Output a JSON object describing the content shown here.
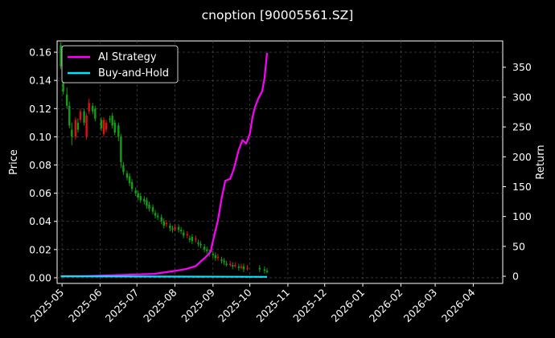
{
  "chart_data": {
    "type": "line",
    "title": "cnoption [90005561.SZ]",
    "ylabel": "Price",
    "y2label": "Return",
    "x_ticks": [
      "2025-05",
      "2025-06",
      "2025-07",
      "2025-08",
      "2025-09",
      "2025-10",
      "2025-11",
      "2025-12",
      "2026-01",
      "2026-02",
      "2026-03",
      "2026-04"
    ],
    "xlim": [
      "2025-04-27",
      "2026-04-25"
    ],
    "ylim": [
      -0.004,
      0.168
    ],
    "y_ticks": [
      "0.00",
      "0.02",
      "0.04",
      "0.06",
      "0.08",
      "0.10",
      "0.12",
      "0.14",
      "0.16"
    ],
    "y2lim": [
      -12,
      394
    ],
    "y2_ticks": [
      "0",
      "50",
      "100",
      "150",
      "200",
      "250",
      "300",
      "350"
    ],
    "grid": true,
    "legend_position": "top-left",
    "colors": {
      "up": "#e01010",
      "down": "#11a011",
      "strategy": "#ff00ff",
      "buyhold": "#00e5ff",
      "grid": "#555555"
    },
    "candles": {
      "dates": [
        "2025-04-30",
        "2025-05-02",
        "2025-05-05",
        "2025-05-07",
        "2025-05-09",
        "2025-05-12",
        "2025-05-14",
        "2025-05-16",
        "2025-05-19",
        "2025-05-21",
        "2025-05-23",
        "2025-05-26",
        "2025-05-28",
        "2025-06-02",
        "2025-06-04",
        "2025-06-06",
        "2025-06-09",
        "2025-06-11",
        "2025-06-13",
        "2025-06-16",
        "2025-06-18",
        "2025-06-20",
        "2025-06-23",
        "2025-06-25",
        "2025-06-27",
        "2025-06-30",
        "2025-07-02",
        "2025-07-04",
        "2025-07-07",
        "2025-07-09",
        "2025-07-11",
        "2025-07-14",
        "2025-07-16",
        "2025-07-18",
        "2025-07-21",
        "2025-07-23",
        "2025-07-25",
        "2025-07-28",
        "2025-07-30",
        "2025-08-01",
        "2025-08-04",
        "2025-08-06",
        "2025-08-08",
        "2025-08-11",
        "2025-08-13",
        "2025-08-15",
        "2025-08-18",
        "2025-08-20",
        "2025-08-22",
        "2025-08-25",
        "2025-08-27",
        "2025-08-29",
        "2025-09-01",
        "2025-09-03",
        "2025-09-05",
        "2025-09-08",
        "2025-09-10",
        "2025-09-12",
        "2025-09-15",
        "2025-09-17",
        "2025-09-19",
        "2025-09-22",
        "2025-09-24",
        "2025-09-26",
        "2025-09-29",
        "2025-10-09",
        "2025-10-13",
        "2025-10-15"
      ],
      "open": [
        0.165,
        0.15,
        0.13,
        0.122,
        0.105,
        0.1,
        0.11,
        0.112,
        0.118,
        0.1,
        0.118,
        0.122,
        0.12,
        0.112,
        0.102,
        0.105,
        0.113,
        0.115,
        0.11,
        0.108,
        0.1,
        0.08,
        0.074,
        0.072,
        0.068,
        0.062,
        0.06,
        0.058,
        0.056,
        0.055,
        0.052,
        0.05,
        0.046,
        0.044,
        0.043,
        0.04,
        0.038,
        0.037,
        0.035,
        0.034,
        0.036,
        0.034,
        0.032,
        0.03,
        0.028,
        0.029,
        0.027,
        0.025,
        0.024,
        0.022,
        0.02,
        0.018,
        0.017,
        0.016,
        0.014,
        0.013,
        0.012,
        0.01,
        0.009,
        0.009,
        0.008,
        0.008,
        0.007,
        0.008,
        0.006,
        0.007,
        0.006,
        0.005
      ],
      "close": [
        0.15,
        0.132,
        0.122,
        0.108,
        0.1,
        0.112,
        0.105,
        0.118,
        0.11,
        0.115,
        0.124,
        0.118,
        0.113,
        0.106,
        0.112,
        0.11,
        0.112,
        0.108,
        0.103,
        0.1,
        0.082,
        0.075,
        0.071,
        0.067,
        0.063,
        0.06,
        0.057,
        0.055,
        0.054,
        0.051,
        0.049,
        0.047,
        0.044,
        0.043,
        0.04,
        0.037,
        0.039,
        0.035,
        0.034,
        0.036,
        0.034,
        0.033,
        0.03,
        0.031,
        0.027,
        0.026,
        0.028,
        0.024,
        0.023,
        0.02,
        0.019,
        0.017,
        0.016,
        0.014,
        0.015,
        0.012,
        0.011,
        0.009,
        0.01,
        0.008,
        0.009,
        0.007,
        0.008,
        0.006,
        0.007,
        0.006,
        0.005,
        0.004
      ],
      "high": [
        0.167,
        0.152,
        0.135,
        0.125,
        0.11,
        0.114,
        0.113,
        0.12,
        0.12,
        0.117,
        0.127,
        0.124,
        0.122,
        0.114,
        0.114,
        0.112,
        0.115,
        0.117,
        0.112,
        0.11,
        0.102,
        0.082,
        0.076,
        0.074,
        0.07,
        0.064,
        0.062,
        0.06,
        0.058,
        0.057,
        0.054,
        0.052,
        0.048,
        0.046,
        0.045,
        0.042,
        0.041,
        0.039,
        0.037,
        0.038,
        0.038,
        0.036,
        0.034,
        0.033,
        0.03,
        0.031,
        0.03,
        0.027,
        0.026,
        0.024,
        0.022,
        0.02,
        0.019,
        0.018,
        0.017,
        0.015,
        0.014,
        0.012,
        0.012,
        0.011,
        0.011,
        0.01,
        0.01,
        0.01,
        0.009,
        0.009,
        0.008,
        0.007
      ],
      "low": [
        0.148,
        0.13,
        0.12,
        0.106,
        0.094,
        0.098,
        0.103,
        0.11,
        0.108,
        0.098,
        0.116,
        0.116,
        0.111,
        0.104,
        0.1,
        0.103,
        0.11,
        0.106,
        0.101,
        0.097,
        0.078,
        0.073,
        0.069,
        0.065,
        0.061,
        0.058,
        0.055,
        0.053,
        0.052,
        0.049,
        0.047,
        0.045,
        0.042,
        0.041,
        0.038,
        0.035,
        0.036,
        0.033,
        0.032,
        0.033,
        0.032,
        0.031,
        0.028,
        0.028,
        0.025,
        0.024,
        0.025,
        0.022,
        0.021,
        0.018,
        0.017,
        0.015,
        0.014,
        0.012,
        0.012,
        0.01,
        0.009,
        0.008,
        0.008,
        0.006,
        0.007,
        0.005,
        0.006,
        0.004,
        0.005,
        0.004,
        0.003,
        0.003
      ]
    },
    "series": [
      {
        "name": "AI Strategy",
        "dates": [
          "2025-04-30",
          "2025-05-15",
          "2025-06-01",
          "2025-06-15",
          "2025-07-01",
          "2025-07-15",
          "2025-07-22",
          "2025-08-01",
          "2025-08-10",
          "2025-08-18",
          "2025-08-22",
          "2025-08-26",
          "2025-08-30",
          "2025-09-02",
          "2025-09-05",
          "2025-09-08",
          "2025-09-11",
          "2025-09-15",
          "2025-09-18",
          "2025-09-22",
          "2025-09-25",
          "2025-09-28",
          "2025-10-01",
          "2025-10-03",
          "2025-10-05",
          "2025-10-08",
          "2025-10-11",
          "2025-10-13",
          "2025-10-15"
        ],
        "values": [
          0,
          0,
          1,
          2,
          3,
          4,
          6,
          9,
          12,
          17,
          25,
          32,
          41,
          68,
          93,
          130,
          160,
          163,
          180,
          212,
          228,
          222,
          238,
          265,
          282,
          298,
          310,
          332,
          374
        ]
      },
      {
        "name": "Buy-and-Hold",
        "dates": [
          "2025-04-30",
          "2025-10-15"
        ],
        "values": [
          0,
          -1
        ]
      }
    ]
  }
}
